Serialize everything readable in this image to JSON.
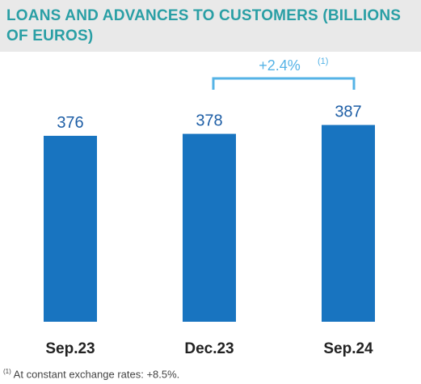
{
  "chart_data": {
    "type": "bar",
    "title": "LOANS AND ADVANCES TO CUSTOMERS (BILLIONS OF EUROS)",
    "categories": [
      "Sep.23",
      "Dec.23",
      "Sep.24"
    ],
    "values": [
      376,
      378,
      387
    ],
    "value_labels": [
      "376",
      "378",
      "387"
    ],
    "xlabel": "",
    "ylabel": "",
    "grid": false,
    "colors": {
      "bar": "#1874c0",
      "value_label": "#1f5fa6",
      "title": "#2a9fa5",
      "annotation": "#55b3e6"
    },
    "annotation": {
      "text": "+2.4%",
      "note_marker": "(1)",
      "from_category": "Dec.23",
      "to_category": "Sep.24"
    }
  },
  "footnote": {
    "marker": "(1)",
    "text": " At constant exchange rates: +8.5%."
  }
}
